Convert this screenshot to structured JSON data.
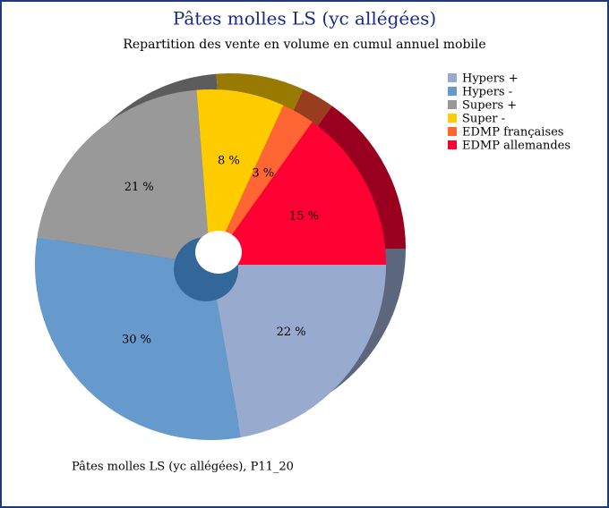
{
  "chart_data": {
    "type": "pie",
    "title": "Pâtes molles LS (yc allégées)",
    "subtitle": "Repartition des vente en volume en cumul annuel mobile",
    "caption": "Pâtes molles LS (yc allégées), P11_20",
    "categories": [
      "Hypers +",
      "Hypers -",
      "Supers +",
      "Super -",
      "EDMP françaises",
      "EDMP allemandes"
    ],
    "values": [
      22,
      30,
      21,
      8,
      3,
      15
    ],
    "value_labels": [
      "22 %",
      "30 %",
      "21 %",
      "8 %",
      "3 %",
      "15 %"
    ],
    "colors": [
      "#99aacf",
      "#6699cc",
      "#999999",
      "#ffcc00",
      "#ff6633",
      "#ff0033"
    ],
    "legend": "top-right"
  }
}
